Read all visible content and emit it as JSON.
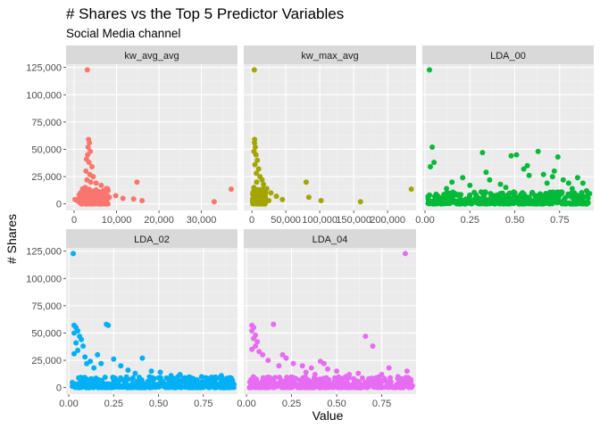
{
  "chart_data": {
    "type": "scatter",
    "title": "# Shares vs the Top 5 Predictor Variables",
    "subtitle": "Social Media channel",
    "xlabel": "Value",
    "ylabel": "# Shares",
    "grid": true,
    "facet_scales": "free_x",
    "ylim": [
      -6000,
      128000
    ],
    "yticks": [
      0,
      25000,
      50000,
      75000,
      100000,
      125000
    ],
    "ytick_labels": [
      "0",
      "25,000",
      "50,000",
      "75,000",
      "100,000",
      "125,000"
    ],
    "panels": [
      {
        "label": "kw_avg_avg",
        "color": "#F8766D",
        "xlim": [
          -1900,
          38500
        ],
        "xticks": [
          0,
          10000,
          20000,
          30000
        ],
        "xtick_labels": [
          "0",
          "10,000",
          "20,000",
          "30,000"
        ],
        "points": [
          [
            3100,
            122800
          ],
          [
            3400,
            59000
          ],
          [
            3600,
            56000
          ],
          [
            3300,
            52000
          ],
          [
            3800,
            48000
          ],
          [
            3200,
            45000
          ],
          [
            2900,
            41000
          ],
          [
            3500,
            38000
          ],
          [
            4200,
            34000
          ],
          [
            2800,
            30000
          ],
          [
            3700,
            27000
          ],
          [
            4500,
            25000
          ],
          [
            3000,
            22000
          ],
          [
            5200,
            19000
          ],
          [
            6400,
            17000
          ],
          [
            7600,
            14000
          ],
          [
            9800,
            7500
          ],
          [
            14800,
            20000
          ],
          [
            14000,
            4500
          ],
          [
            16000,
            3000
          ],
          [
            33000,
            2000
          ],
          [
            37000,
            13500
          ],
          [
            5800,
            9000
          ],
          [
            8300,
            6000
          ],
          [
            11500,
            5000
          ],
          [
            4800,
            12000
          ],
          [
            2600,
            15000
          ],
          [
            3900,
            20000
          ],
          [
            1500,
            6000
          ],
          [
            200,
            4000
          ],
          [
            900,
            2500
          ],
          [
            2200,
            9000
          ],
          [
            4100,
            10500
          ],
          [
            5600,
            11000
          ],
          [
            6700,
            8000
          ],
          [
            7200,
            4500
          ]
        ],
        "band": {
          "x_min": 1000,
          "x_max": 8000,
          "y_max": 14000,
          "n": 160
        }
      },
      {
        "label": "kw_max_avg",
        "color": "#A3A500",
        "xlim": [
          -12000,
          242000
        ],
        "xticks": [
          0,
          50000,
          100000,
          150000,
          200000
        ],
        "xtick_labels": [
          "0",
          "50,000",
          "100,000",
          "150,000",
          "200,000"
        ],
        "points": [
          [
            3500,
            122800
          ],
          [
            4000,
            59000
          ],
          [
            3800,
            56000
          ],
          [
            5000,
            52000
          ],
          [
            3200,
            48000
          ],
          [
            6000,
            45000
          ],
          [
            8000,
            40000
          ],
          [
            4500,
            36000
          ],
          [
            10000,
            32000
          ],
          [
            6500,
            28000
          ],
          [
            12000,
            25000
          ],
          [
            15000,
            22000
          ],
          [
            17000,
            18000
          ],
          [
            22000,
            14000
          ],
          [
            28000,
            10000
          ],
          [
            36000,
            7000
          ],
          [
            45000,
            4000
          ],
          [
            80000,
            20000
          ],
          [
            84000,
            6000
          ],
          [
            102000,
            3000
          ],
          [
            160000,
            2000
          ],
          [
            235000,
            13500
          ],
          [
            9000,
            11000
          ],
          [
            14000,
            6000
          ],
          [
            19000,
            4500
          ],
          [
            25000,
            3000
          ],
          [
            3000,
            15000
          ],
          [
            7000,
            20000
          ]
        ],
        "band": {
          "x_min": 500,
          "x_max": 20000,
          "y_max": 14000,
          "n": 140
        }
      },
      {
        "label": "LDA_00",
        "color": "#00BA38",
        "xlim": [
          -0.015,
          0.94
        ],
        "xticks": [
          0,
          0.25,
          0.5,
          0.75
        ],
        "xtick_labels": [
          "0.00",
          "0.25",
          "0.50",
          "0.75"
        ],
        "points": [
          [
            0.025,
            122800
          ],
          [
            0.04,
            52000
          ],
          [
            0.05,
            38000
          ],
          [
            0.03,
            34000
          ],
          [
            0.21,
            24000
          ],
          [
            0.32,
            47000
          ],
          [
            0.34,
            29000
          ],
          [
            0.36,
            22000
          ],
          [
            0.48,
            44000
          ],
          [
            0.51,
            45000
          ],
          [
            0.55,
            32000
          ],
          [
            0.57,
            35000
          ],
          [
            0.58,
            26000
          ],
          [
            0.63,
            48000
          ],
          [
            0.66,
            27000
          ],
          [
            0.71,
            25000
          ],
          [
            0.72,
            30000
          ],
          [
            0.74,
            43000
          ],
          [
            0.77,
            22000
          ],
          [
            0.8,
            19000
          ],
          [
            0.85,
            24000
          ],
          [
            0.88,
            19000
          ],
          [
            0.15,
            20000
          ],
          [
            0.25,
            17000
          ],
          [
            0.42,
            18000
          ],
          [
            0.45,
            15000
          ],
          [
            0.68,
            19000
          ],
          [
            0.12,
            14000
          ],
          [
            0.9,
            12000
          ],
          [
            0.82,
            14000
          ]
        ],
        "band": {
          "x_min": 0.015,
          "x_max": 0.92,
          "y_max": 11000,
          "n": 420
        }
      },
      {
        "label": "LDA_02",
        "color": "#00B0F6",
        "xlim": [
          -0.015,
          0.94
        ],
        "xticks": [
          0,
          0.25,
          0.5,
          0.75
        ],
        "xtick_labels": [
          "0.00",
          "0.25",
          "0.50",
          "0.75"
        ],
        "points": [
          [
            0.025,
            122800
          ],
          [
            0.03,
            57000
          ],
          [
            0.04,
            55000
          ],
          [
            0.05,
            52000
          ],
          [
            0.03,
            50000
          ],
          [
            0.06,
            47000
          ],
          [
            0.07,
            44000
          ],
          [
            0.04,
            41000
          ],
          [
            0.08,
            38000
          ],
          [
            0.05,
            34000
          ],
          [
            0.03,
            31000
          ],
          [
            0.16,
            30000
          ],
          [
            0.21,
            58000
          ],
          [
            0.22,
            57000
          ],
          [
            0.25,
            26000
          ],
          [
            0.12,
            24000
          ],
          [
            0.18,
            22000
          ],
          [
            0.29,
            20000
          ],
          [
            0.41,
            27000
          ],
          [
            0.46,
            15000
          ],
          [
            0.51,
            14000
          ],
          [
            0.62,
            12000
          ],
          [
            0.74,
            10000
          ],
          [
            0.85,
            11000
          ],
          [
            0.9,
            9000
          ],
          [
            0.09,
            28000
          ],
          [
            0.1,
            22000
          ],
          [
            0.14,
            18000
          ],
          [
            0.33,
            16000
          ],
          [
            0.37,
            13000
          ],
          [
            0.57,
            11000
          ],
          [
            0.68,
            9000
          ]
        ],
        "band": {
          "x_min": 0.015,
          "x_max": 0.92,
          "y_max": 10000,
          "n": 420
        }
      },
      {
        "label": "LDA_04",
        "color": "#E76BF3",
        "xlim": [
          -0.015,
          0.94
        ],
        "xticks": [
          0,
          0.25,
          0.5,
          0.75
        ],
        "xtick_labels": [
          "0.00",
          "0.25",
          "0.50",
          "0.75"
        ],
        "points": [
          [
            0.88,
            122800
          ],
          [
            0.03,
            57000
          ],
          [
            0.04,
            55000
          ],
          [
            0.03,
            52000
          ],
          [
            0.05,
            48000
          ],
          [
            0.04,
            45000
          ],
          [
            0.06,
            42000
          ],
          [
            0.05,
            38000
          ],
          [
            0.03,
            35000
          ],
          [
            0.15,
            58000
          ],
          [
            0.07,
            33000
          ],
          [
            0.09,
            30000
          ],
          [
            0.2,
            30000
          ],
          [
            0.22,
            27000
          ],
          [
            0.26,
            22000
          ],
          [
            0.31,
            20000
          ],
          [
            0.36,
            18000
          ],
          [
            0.41,
            24000
          ],
          [
            0.43,
            22000
          ],
          [
            0.45,
            17000
          ],
          [
            0.5,
            15000
          ],
          [
            0.57,
            12000
          ],
          [
            0.62,
            13000
          ],
          [
            0.66,
            47000
          ],
          [
            0.7,
            38000
          ],
          [
            0.75,
            12000
          ],
          [
            0.79,
            18000
          ],
          [
            0.84,
            10000
          ],
          [
            0.89,
            15000
          ],
          [
            0.12,
            25000
          ],
          [
            0.18,
            20000
          ],
          [
            0.33,
            14000
          ],
          [
            0.38,
            12000
          ],
          [
            0.55,
            10000
          ],
          [
            0.72,
            9000
          ]
        ],
        "band": {
          "x_min": 0.015,
          "x_max": 0.92,
          "y_max": 10000,
          "n": 420
        }
      }
    ]
  }
}
